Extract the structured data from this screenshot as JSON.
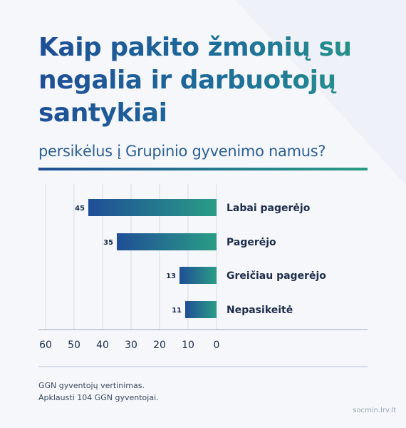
{
  "header": {
    "title": "Kaip pakito žmonių su negalia ir darbuotojų santykiai",
    "subtitle": "persikėlus į Grupinio gyvenimo namus?"
  },
  "notes": {
    "line1": "GGN gyventojų vertinimas.",
    "line2": "Apklausti 104 GGN gyventojai."
  },
  "footer": {
    "source": "socmin.lrv.lt"
  },
  "colors": {
    "bar_start": "#1f4e96",
    "bar_end": "#2a9d86",
    "text_dark": "#1d2c4a"
  },
  "chart_data": {
    "type": "bar",
    "orientation": "horizontal",
    "direction": "right-to-left",
    "categories": [
      "Labai pagerėjo",
      "Pagerėjo",
      "Greičiau pagerėjo",
      "Nepasikeitė"
    ],
    "values": [
      45,
      35,
      13,
      11
    ],
    "data_labels": [
      "45",
      "35",
      "13",
      "11"
    ],
    "xlim": [
      0,
      60
    ],
    "x_ticks": [
      "0",
      "10",
      "20",
      "30",
      "40",
      "50",
      "60"
    ],
    "grid": true
  }
}
